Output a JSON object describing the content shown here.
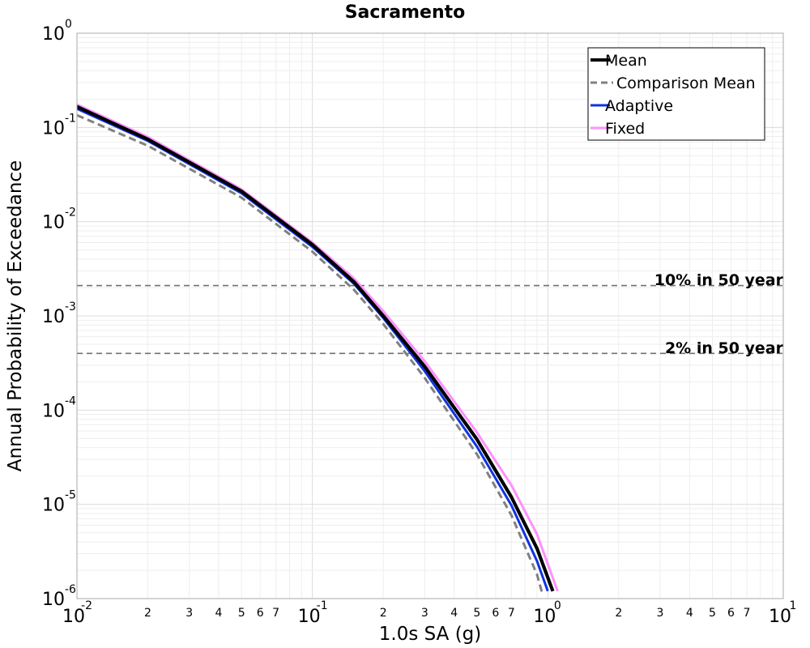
{
  "chart_data": {
    "type": "line",
    "title": "Sacramento",
    "xlabel": "1.0s SA (g)",
    "ylabel": "Annual Probability of Exceedance",
    "xscale": "log",
    "yscale": "log",
    "xlim": [
      0.01,
      10
    ],
    "ylim": [
      1e-06,
      1
    ],
    "x_major_ticks": [
      {
        "value": 0.01,
        "base": "10",
        "exp": "-2"
      },
      {
        "value": 0.1,
        "base": "10",
        "exp": "-1"
      },
      {
        "value": 1,
        "base": "10",
        "exp": "0"
      },
      {
        "value": 10,
        "base": "10",
        "exp": "1"
      }
    ],
    "x_minor_labels": [
      "2",
      "3",
      "4",
      "5",
      "6",
      "7"
    ],
    "y_major_ticks": [
      {
        "value": 1,
        "base": "10",
        "exp": "0"
      },
      {
        "value": 0.1,
        "base": "10",
        "exp": "-1"
      },
      {
        "value": 0.01,
        "base": "10",
        "exp": "-2"
      },
      {
        "value": 0.001,
        "base": "10",
        "exp": "-3"
      },
      {
        "value": 0.0001,
        "base": "10",
        "exp": "-4"
      },
      {
        "value": 1e-05,
        "base": "10",
        "exp": "-5"
      },
      {
        "value": 1e-06,
        "base": "10",
        "exp": "-6"
      }
    ],
    "grid": true,
    "legend_position": "top-right",
    "series": [
      {
        "name": "Comparison Mean",
        "color": "#808080",
        "dash": "dashed",
        "x": [
          0.01,
          0.02,
          0.05,
          0.1,
          0.15,
          0.2,
          0.3,
          0.5,
          0.7,
          0.9,
          0.95
        ],
        "y": [
          0.135,
          0.064,
          0.018,
          0.0048,
          0.0019,
          0.00082,
          0.00022,
          3.4e-05,
          7.7e-06,
          1.8e-06,
          1.1e-06
        ]
      },
      {
        "name": "Adaptive",
        "color": "#1033e0",
        "dash": "solid",
        "x": [
          0.01,
          0.02,
          0.05,
          0.1,
          0.15,
          0.2,
          0.3,
          0.5,
          0.7,
          0.9,
          1.0
        ],
        "y": [
          0.158,
          0.072,
          0.02,
          0.0054,
          0.0022,
          0.00095,
          0.00026,
          4.1e-05,
          9.8e-06,
          2.5e-06,
          1.2e-06
        ]
      },
      {
        "name": "Fixed",
        "color": "#ff90ff",
        "dash": "solid",
        "x": [
          0.01,
          0.02,
          0.05,
          0.1,
          0.15,
          0.2,
          0.3,
          0.5,
          0.7,
          0.9,
          1.1
        ],
        "y": [
          0.175,
          0.079,
          0.022,
          0.006,
          0.0025,
          0.00112,
          0.00033,
          5.8e-05,
          1.6e-05,
          4.8e-06,
          1.2e-06
        ]
      },
      {
        "name": "Mean",
        "color": "#000000",
        "dash": "solid",
        "x": [
          0.01,
          0.02,
          0.05,
          0.1,
          0.15,
          0.2,
          0.3,
          0.5,
          0.7,
          0.9,
          1.05
        ],
        "y": [
          0.166,
          0.075,
          0.021,
          0.0057,
          0.0023,
          0.001,
          0.00029,
          4.9e-05,
          1.2e-05,
          3.4e-06,
          1.2e-06
        ]
      }
    ],
    "legend_order": [
      "Mean",
      "Comparison Mean",
      "Adaptive",
      "Fixed"
    ],
    "reference_lines": [
      {
        "label": "10% in 50 year",
        "y": 0.0021
      },
      {
        "label": "2% in 50 year",
        "y": 0.0004
      }
    ]
  }
}
